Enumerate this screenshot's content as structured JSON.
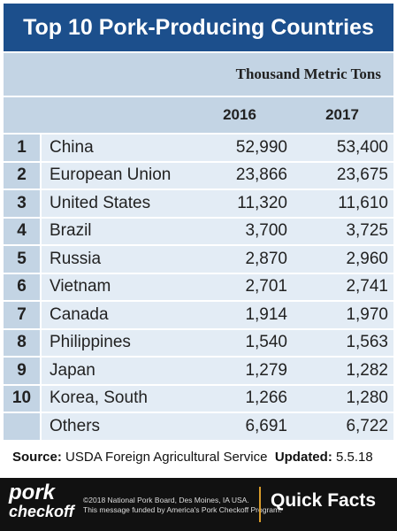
{
  "header": {
    "title": "Top 10 Pork-Producing Countries"
  },
  "table": {
    "unit": "Thousand Metric Tons",
    "columns": [
      "2016",
      "2017"
    ],
    "rows": [
      {
        "rank": "1",
        "country": "China",
        "values": [
          "52,990",
          "53,400"
        ]
      },
      {
        "rank": "2",
        "country": "European Union",
        "values": [
          "23,866",
          "23,675"
        ]
      },
      {
        "rank": "3",
        "country": "United States",
        "values": [
          "11,320",
          "11,610"
        ]
      },
      {
        "rank": "4",
        "country": "Brazil",
        "values": [
          "3,700",
          "3,725"
        ]
      },
      {
        "rank": "5",
        "country": "Russia",
        "values": [
          "2,870",
          "2,960"
        ]
      },
      {
        "rank": "6",
        "country": "Vietnam",
        "values": [
          "2,701",
          "2,741"
        ]
      },
      {
        "rank": "7",
        "country": "Canada",
        "values": [
          "1,914",
          "1,970"
        ]
      },
      {
        "rank": "8",
        "country": "Philippines",
        "values": [
          "1,540",
          "1,563"
        ]
      },
      {
        "rank": "9",
        "country": "Japan",
        "values": [
          "1,279",
          "1,282"
        ]
      },
      {
        "rank": "10",
        "country": "Korea, South",
        "values": [
          "1,266",
          "1,280"
        ]
      },
      {
        "country": "Others",
        "values": [
          "6,691",
          "6,722"
        ]
      }
    ]
  },
  "footer": {
    "source_label": "Source:",
    "source": "USDA Foreign Agricultural Service",
    "updated_label": "Updated:",
    "updated": "5.5.18"
  },
  "brand": {
    "logo_top": "pork",
    "logo_bottom": "checkoff",
    "notice": [
      "©2018 National Pork Board, Des Moines, IA USA.",
      "This message funded by America's Pork Checkoff Program."
    ],
    "tagline": "Quick Facts"
  }
}
